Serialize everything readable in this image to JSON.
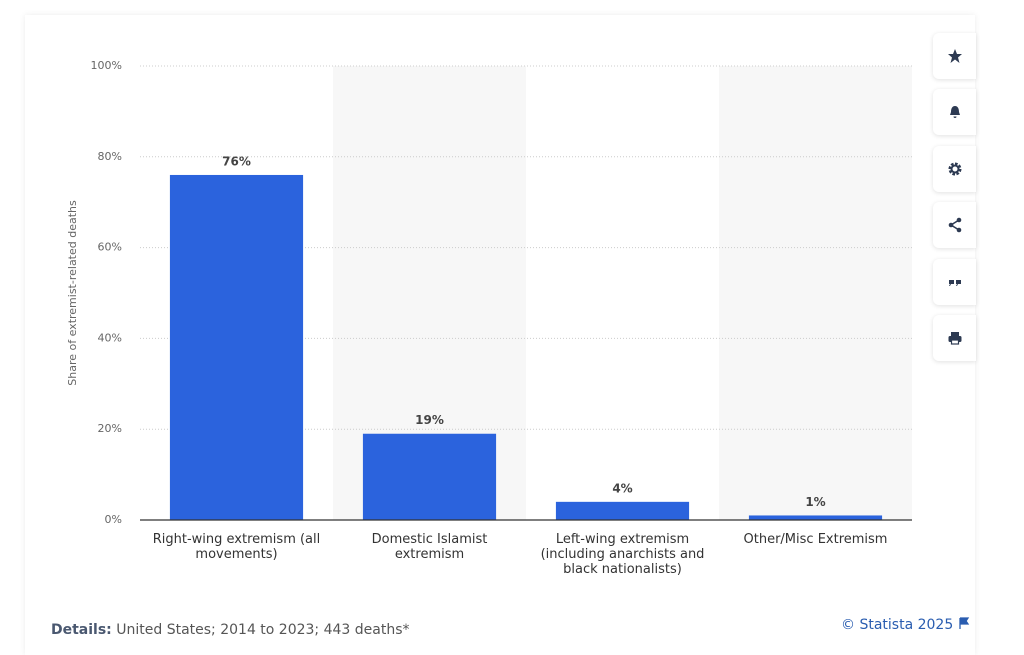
{
  "chart_data": {
    "type": "bar",
    "y_label": "Share of extremist-related deaths",
    "categories": [
      "Right-wing extremism (all movements)",
      "Domestic Islamist extremism",
      "Left-wing extremism (including anarchists and black nationalists)",
      "Other/Misc Extremism"
    ],
    "values": [
      76,
      19,
      4,
      1
    ],
    "value_labels": [
      "76%",
      "19%",
      "4%",
      "1%"
    ],
    "color": "#2b63dd",
    "ylim": [
      0,
      100
    ],
    "yticks": [
      {
        "value": 0,
        "label": "0%"
      },
      {
        "value": 20,
        "label": "20%"
      },
      {
        "value": 40,
        "label": "40%"
      },
      {
        "value": 60,
        "label": "60%"
      },
      {
        "value": 80,
        "label": "80%"
      },
      {
        "value": 100,
        "label": "100%"
      }
    ],
    "grid": true
  },
  "footer": {
    "details_label": "Details:",
    "details": "United States; 2014 to 2023; 443 deaths*",
    "source": "© Statista 2025"
  }
}
